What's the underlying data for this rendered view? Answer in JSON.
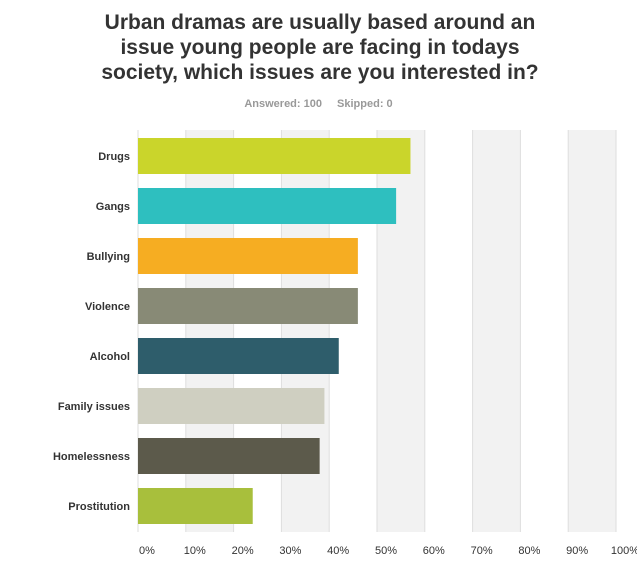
{
  "header": {
    "title_lines": [
      "Urban dramas are usually based around an",
      "issue young people are facing in todays",
      "society, which issues are you interested in?"
    ],
    "answered": "Answered: 100",
    "skipped": "Skipped: 0"
  },
  "chart_data": {
    "type": "bar",
    "orientation": "horizontal",
    "categories": [
      "Drugs",
      "Gangs",
      "Bullying",
      "Violence",
      "Alcohol",
      "Family issues",
      "Homelessness",
      "Prostitution"
    ],
    "values": [
      57,
      54,
      46,
      46,
      42,
      39,
      38,
      24
    ],
    "colors": [
      "#cad52b",
      "#2ebfbf",
      "#f6ad22",
      "#888a76",
      "#2e5d6b",
      "#cfcfc1",
      "#5c5a4b",
      "#a8bf3c"
    ],
    "xlim": [
      0,
      100
    ],
    "ticks": [
      0,
      10,
      20,
      30,
      40,
      50,
      60,
      70,
      80,
      90,
      100
    ],
    "tick_labels": [
      "0%",
      "10%",
      "20%",
      "30%",
      "40%",
      "50%",
      "60%",
      "70%",
      "80%",
      "90%",
      "100%"
    ],
    "grid": true,
    "grid_color": "#dedede",
    "band_color": "#f2f2f2"
  }
}
